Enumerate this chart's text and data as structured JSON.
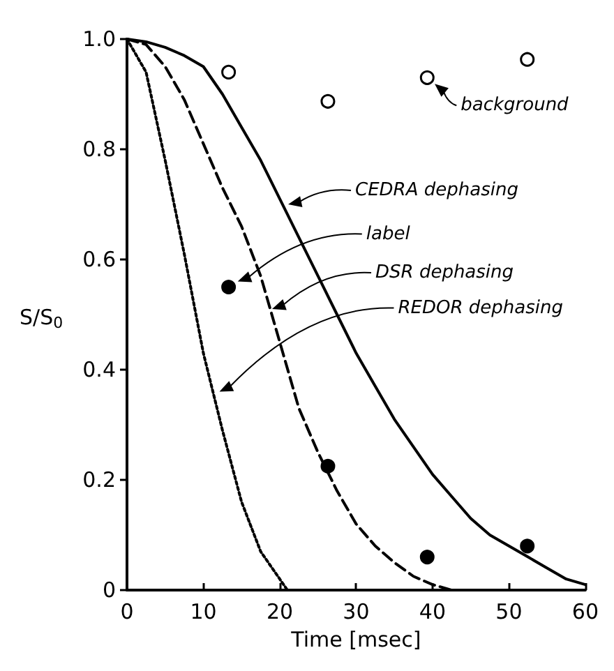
{
  "chart_data": {
    "type": "line",
    "xlabel": "Time [msec]",
    "ylabel": "S/S$_{0}$",
    "xlim": [
      0,
      60
    ],
    "xticks": [
      0,
      10,
      20,
      30,
      40,
      50,
      60
    ],
    "ylim": [
      0,
      1
    ],
    "yticks": [
      0,
      0.2,
      0.4,
      0.6,
      0.8,
      {
        "value": 1,
        "label": "1.0"
      }
    ],
    "grid": false,
    "series": [
      {
        "type": "line",
        "color": "#000000",
        "line_style": "solid",
        "marker": "none",
        "x": [
          0,
          2.5,
          5,
          7.5,
          10,
          12.5,
          15,
          17.5,
          20,
          22.5,
          25,
          27.5,
          30,
          32.5,
          35,
          37.5,
          40,
          42.5,
          45,
          47.5,
          50,
          52.5,
          55,
          57.5,
          60
        ],
        "values": [
          1,
          0.995,
          0.985,
          0.97,
          0.95,
          0.9,
          0.84,
          0.78,
          0.71,
          0.64,
          0.57,
          0.5,
          0.43,
          0.37,
          0.31,
          0.26,
          0.21,
          0.17,
          0.13,
          0.1,
          0.08,
          0.06,
          0.04,
          0.02,
          0.01
        ]
      },
      {
        "type": "line",
        "color": "#000000",
        "line_style": "dashed",
        "marker": "none",
        "x": [
          0,
          2.5,
          5,
          7.5,
          10,
          12.5,
          15,
          17.5,
          20,
          22.5,
          25,
          27.5,
          30,
          32.5,
          35,
          37.5,
          40,
          42.5
        ],
        "values": [
          1,
          0.99,
          0.95,
          0.89,
          0.81,
          0.73,
          0.66,
          0.57,
          0.45,
          0.33,
          0.25,
          0.18,
          0.12,
          0.08,
          0.05,
          0.025,
          0.01,
          0
        ]
      },
      {
        "type": "line",
        "color": "#000000",
        "line_style": "dotted",
        "marker": "none",
        "x": [
          0,
          2.5,
          5,
          7.5,
          10,
          12.5,
          15,
          17.5,
          20,
          21
        ],
        "values": [
          1,
          0.94,
          0.78,
          0.61,
          0.43,
          0.29,
          0.16,
          0.07,
          0.02,
          0
        ]
      },
      {
        "type": "scatter",
        "color": "#ffffff",
        "marker": "circle",
        "x": [
          13.3,
          26.3,
          39.3,
          52.4
        ],
        "values": [
          0.94,
          0.887,
          0.93,
          0.963
        ]
      },
      {
        "type": "scatter",
        "color": "#000000",
        "marker": "circle",
        "x": [
          13.3,
          26.3,
          39.3,
          52.4
        ],
        "values": [
          0.55,
          0.225,
          0.06,
          0.08
        ]
      }
    ],
    "annotations": [
      {
        "text": "background",
        "x": 39.3,
        "y": 0.93
      },
      {
        "text": "CEDRA dephasing",
        "x": 21.1,
        "y": 0.7
      },
      {
        "text": "label",
        "x": 14.5,
        "y": 0.56
      },
      {
        "text": "DSR dephasing",
        "x": 19,
        "y": 0.51
      },
      {
        "text": "REDOR dephasing",
        "x": 12.1,
        "y": 0.36
      }
    ]
  }
}
